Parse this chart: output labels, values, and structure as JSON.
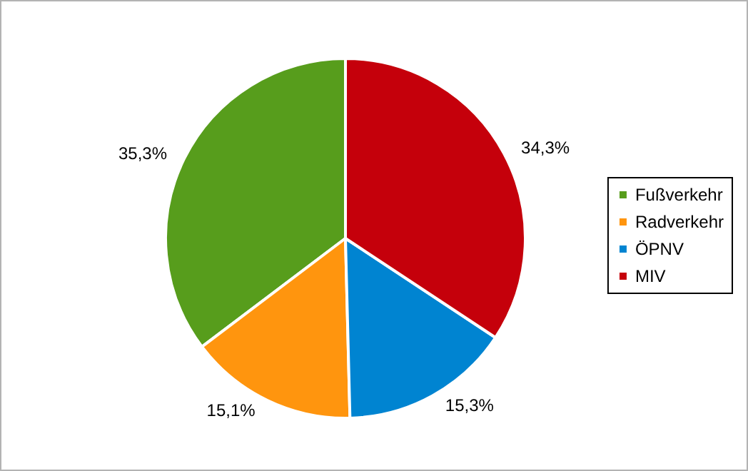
{
  "chart_data": {
    "type": "pie",
    "categories": [
      "Fußverkehr",
      "Radverkehr",
      "ÖPNV",
      "MIV"
    ],
    "values": [
      35.3,
      15.1,
      15.3,
      34.3
    ],
    "value_labels": [
      "35,3%",
      "15,1%",
      "15,3%",
      "34,3%"
    ],
    "colors": [
      "#579d1c",
      "#ff950e",
      "#0084d1",
      "#c5000b"
    ],
    "legend": "right"
  }
}
